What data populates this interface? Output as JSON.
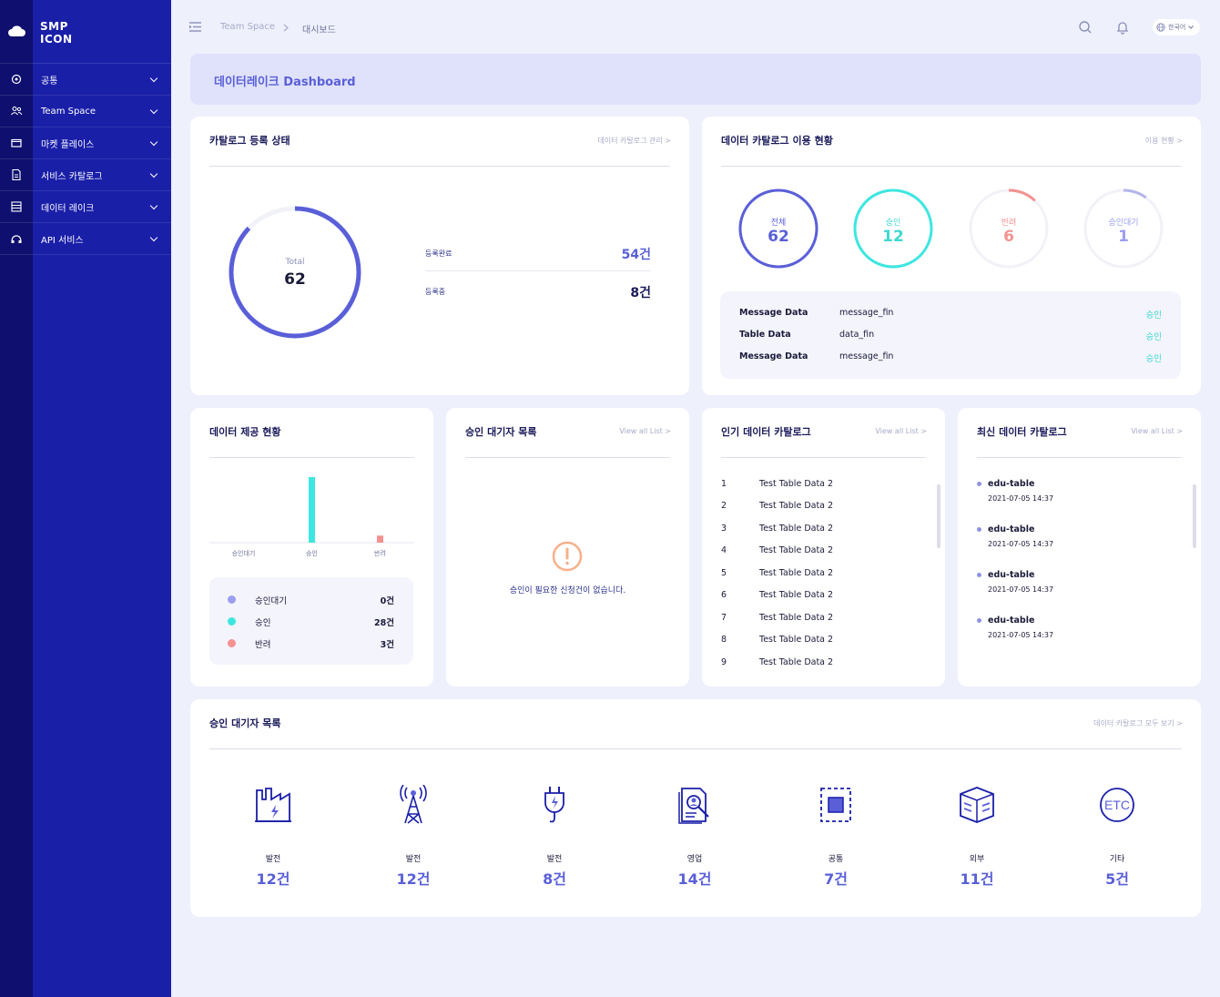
{
  "app": {
    "logo_line1": "SMP",
    "logo_line2": "ICON"
  },
  "sidebar": {
    "items": [
      {
        "label": "공통",
        "icon": "gear-icon"
      },
      {
        "label": "Team Space",
        "icon": "users-icon"
      },
      {
        "label": "마켓 플레이스",
        "icon": "folder-icon"
      },
      {
        "label": "서비스 카탈로그",
        "icon": "document-icon"
      },
      {
        "label": "데이터 레이크",
        "icon": "database-icon"
      },
      {
        "label": "API 서비스",
        "icon": "api-icon"
      }
    ]
  },
  "topbar": {
    "breadcrumb": [
      "Team Space",
      "대시보드"
    ],
    "language": "한국어"
  },
  "banner": {
    "title": "데이터레이크 Dashboard"
  },
  "catalog_status": {
    "title": "카탈로그 등록 상태",
    "link": "데이터 카탈로그 관리 >",
    "total_label": "Total",
    "total_value": "62",
    "rows": [
      {
        "label": "등록완료",
        "value": "54건"
      },
      {
        "label": "등록중",
        "value": "8건"
      }
    ],
    "progress": 0.871
  },
  "catalog_usage": {
    "title": "데이터 카탈로그 이용 현황",
    "link": "이용 현황 >",
    "rings": [
      {
        "label": "전체",
        "value": "6​2",
        "fraction": 1.0,
        "color": "#5a5fd8"
      },
      {
        "label": "승인",
        "value": "12",
        "fraction": 1.0,
        "color": "#3ee6e0"
      },
      {
        "label": "반려",
        "value": "6",
        "fraction": 0.12,
        "color": "#f59191"
      },
      {
        "label": "승인대기",
        "value": "1",
        "fraction": 0.1,
        "color": "#b3b5ea"
      }
    ],
    "messages": [
      {
        "type": "Message Data",
        "name": "message_fin",
        "status": "승인"
      },
      {
        "type": "Table Data",
        "name": "data_fin",
        "status": "승인"
      },
      {
        "type": "Message Data",
        "name": "message_fin",
        "status": "승인"
      }
    ]
  },
  "data_provision": {
    "title": "데이터 제공 현황",
    "chart_data": {
      "type": "bar",
      "categories": [
        "승인대기",
        "승인",
        "반려"
      ],
      "values": [
        0,
        28,
        3
      ],
      "ylim": [
        0,
        28
      ],
      "colors": [
        "#9b9ef0",
        "#3ee6e0",
        "#f59191"
      ]
    },
    "legend": [
      {
        "label": "승인대기",
        "value": "0건",
        "color": "#9b9ef0"
      },
      {
        "label": "승인",
        "value": "28건",
        "color": "#3ee6e0"
      },
      {
        "label": "반려",
        "value": "3건",
        "color": "#f59191"
      }
    ]
  },
  "pending_approval": {
    "title": "승인 대기자 목록",
    "link": "View all List >",
    "empty_message": "승인이 필요한 신청건이 없습니다."
  },
  "popular_catalog": {
    "title": "인기 데이터 카탈로그",
    "link": "View all List >",
    "items": [
      {
        "rank": "1",
        "name": "Test Table Data 2"
      },
      {
        "rank": "2",
        "name": "Test Table Data 2"
      },
      {
        "rank": "3",
        "name": "Test Table Data 2"
      },
      {
        "rank": "4",
        "name": "Test Table Data 2"
      },
      {
        "rank": "5",
        "name": "Test Table Data 2"
      },
      {
        "rank": "6",
        "name": "Test Table Data 2"
      },
      {
        "rank": "7",
        "name": "Test Table Data 2"
      },
      {
        "rank": "8",
        "name": "Test Table Data 2"
      },
      {
        "rank": "9",
        "name": "Test Table Data 2"
      }
    ]
  },
  "recent_catalog": {
    "title": "최신 데이터 카탈로그",
    "link": "View all List >",
    "items": [
      {
        "name": "edu-table",
        "time": "2021-07-05 14:37"
      },
      {
        "name": "edu-table",
        "time": "2021-07-05 14:37"
      },
      {
        "name": "edu-table",
        "time": "2021-07-05 14:37"
      },
      {
        "name": "edu-table",
        "time": "2021-07-05 14:37"
      }
    ]
  },
  "categories": {
    "title": "승인 대기자 목록",
    "link": "데이터 카탈로그 모두 보기 >",
    "items": [
      {
        "name": "발전",
        "count": "12건",
        "icon": "factory-icon"
      },
      {
        "name": "발전",
        "count": "12건",
        "icon": "antenna-tower-icon"
      },
      {
        "name": "발전",
        "count": "8건",
        "icon": "power-plug-icon"
      },
      {
        "name": "영업",
        "count": "14건",
        "icon": "document-search-icon"
      },
      {
        "name": "공통",
        "count": "7건",
        "icon": "selection-box-icon"
      },
      {
        "name": "외부",
        "count": "11건",
        "icon": "cube-icon"
      },
      {
        "name": "기타",
        "count": "5건",
        "icon": "etc-icon"
      }
    ]
  }
}
